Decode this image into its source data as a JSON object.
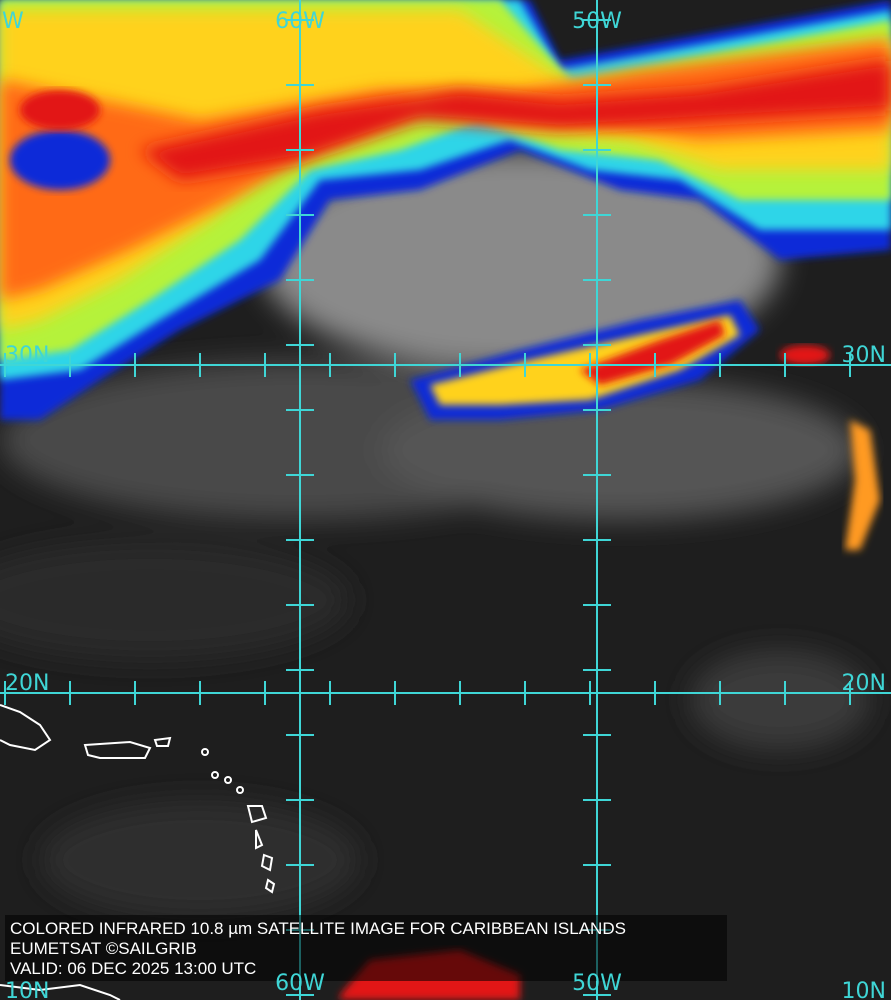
{
  "map": {
    "grid_labels": {
      "top": [
        "W",
        "60W",
        "50W"
      ],
      "left": [
        "30N",
        "20N",
        "10N"
      ],
      "right": [
        "30N",
        "20N",
        "10N"
      ],
      "bottom": [
        "60W",
        "50W"
      ]
    },
    "caption": [
      "COLORED INFRARED 10.8 µm SATELLITE IMAGE FOR CARIBBEAN ISLANDS",
      "EUMETSAT ©SAILGRIB",
      "VALID:  06 DEC 2025 13:00 UTC"
    ]
  }
}
